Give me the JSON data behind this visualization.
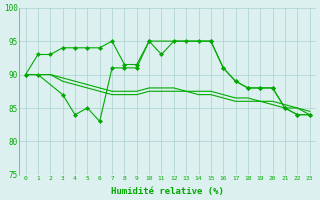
{
  "ylim": [
    75,
    100
  ],
  "yticks": [
    75,
    80,
    85,
    90,
    95,
    100
  ],
  "xlabel": "Humidité relative (%)",
  "bg_color": "#ddf0f0",
  "grid_color": "#aacece",
  "line_color": "#00aa00",
  "series_a_x": [
    0,
    1,
    2,
    3,
    4,
    5,
    6,
    7,
    8,
    9,
    10,
    11,
    12,
    13,
    14,
    15,
    16,
    17,
    18,
    19,
    20,
    21,
    22,
    23
  ],
  "series_a_y": [
    90,
    93,
    93,
    94,
    94,
    94,
    94,
    95,
    91.5,
    91.5,
    95,
    93,
    95,
    95,
    95,
    95,
    91,
    89,
    88,
    88,
    88,
    85,
    84,
    84
  ],
  "series_b_x": [
    0,
    1,
    3,
    4,
    5,
    6,
    7,
    8,
    9,
    10,
    15,
    16,
    17,
    18,
    19,
    20,
    21,
    22,
    23
  ],
  "series_b_y": [
    90,
    90,
    87,
    84,
    85,
    83,
    91,
    91,
    91,
    95,
    95,
    91,
    89,
    88,
    88,
    88,
    85,
    84,
    84
  ],
  "series_c_x": [
    0,
    1,
    2,
    3,
    4,
    5,
    6,
    7,
    8,
    9,
    10,
    11,
    12,
    13,
    14,
    15,
    16,
    17,
    18,
    19,
    20,
    21,
    22,
    23
  ],
  "series_c_y": [
    90,
    90,
    90,
    89,
    88.5,
    88,
    87.5,
    87,
    87,
    87,
    87.5,
    87.5,
    87.5,
    87.5,
    87,
    87,
    86.5,
    86,
    86,
    86,
    85.5,
    85,
    85,
    84
  ],
  "series_d_x": [
    0,
    1,
    2,
    3,
    4,
    5,
    6,
    7,
    8,
    9,
    10,
    11,
    12,
    13,
    14,
    15,
    16,
    17,
    18,
    19,
    20,
    21,
    22,
    23
  ],
  "series_d_y": [
    90,
    90,
    90,
    89.5,
    89,
    88.5,
    88,
    87.5,
    87.5,
    87.5,
    88,
    88,
    88,
    87.5,
    87.5,
    87.5,
    87,
    86.5,
    86.5,
    86,
    86,
    85.5,
    85,
    84.5
  ]
}
